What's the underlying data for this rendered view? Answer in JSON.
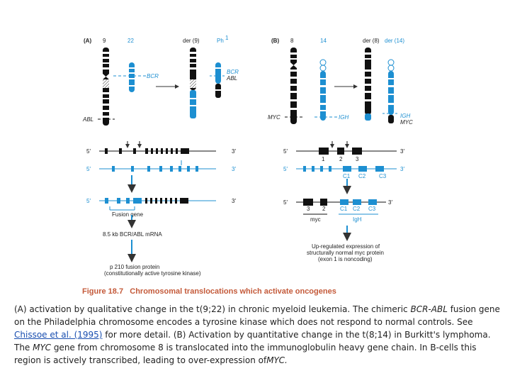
{
  "panel_a": {
    "label": "(A)",
    "chr9": "9",
    "chr22": "22",
    "der9": "der (9)",
    "ph": "Ph",
    "ph_sup": "1",
    "bcr": "BCR",
    "bcr_right": "BCR",
    "abl_right": "ABL",
    "abl_left": "ABL",
    "five1": "5′",
    "three1": "3′",
    "five2": "5′",
    "three2": "3′",
    "five3": "5′",
    "three3": "3′",
    "fusion_gene": "Fusion gene",
    "mrna": "8.5 kb BCR/ABL mRNA",
    "protein_line1": "p 210 fusion protein",
    "protein_line2": "(constitutionally active tyrosine kinase)"
  },
  "panel_b": {
    "label": "(B)",
    "chr8": "8",
    "chr14": "14",
    "der8": "der (8)",
    "der14": "der (14)",
    "myc": "MYC",
    "igh": "IGH",
    "igh_right": "IGH",
    "myc_right": "MYC",
    "five1": "5′",
    "three1": "3′",
    "five2": "5′",
    "three2": "3′",
    "five3": "5′",
    "three3": "3′",
    "ex1": "1",
    "ex2": "2",
    "ex3": "3",
    "c1": "C1",
    "c2": "C2",
    "c3": "C3",
    "f_ex3": "3",
    "f_ex2": "2",
    "f_c1": "C1",
    "f_c2": "C2",
    "f_c3": "C3",
    "myc_small": "myc",
    "igh_small": "IgH",
    "upreg1": "Up-regulated expression of",
    "upreg2": "structurally normal myc protein",
    "upreg3": "(exon 1 is noncoding)"
  },
  "figure_title": "Figure 18.7   Chromosomal translocations which activate oncogenes",
  "caption": {
    "p1": "(A) activation by qualitative change in the t(9;22) in chronic myeloid leukemia. The chimeric ",
    "bcr_abl": "BCR-ABL",
    "p2": " fusion gene on the Philadelphia chromosome encodes a tyrosine kinase which does not respond to normal controls. See ",
    "link": "Chissoe et al. (1995)",
    "p3": " for more detail. (B) Activation by quantitative change in the t(8;14) in Burkitt's lymphoma. The ",
    "myc1": "MYC",
    "p4": " gene from chromosome 8 is translocated into the immunoglobulin heavy gene chain. In B-cells this region is actively transcribed, leading to over-expression of",
    "myc2": "MYC."
  },
  "colors": {
    "blue": "#1d8fd1",
    "black": "#111111",
    "title": "#c45a3a"
  }
}
